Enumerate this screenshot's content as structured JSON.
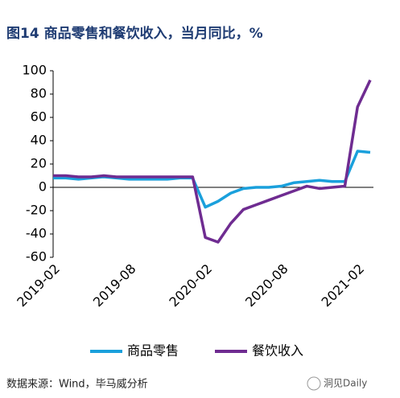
{
  "chart_data": {
    "type": "line",
    "title": "图14  商品零售和餐饮收入，当月同比，%",
    "source": "数据来源：Wind，毕马威分析",
    "watermark": "洞见Daily",
    "categories": [
      "2019-02",
      null,
      null,
      null,
      null,
      null,
      "2019-08",
      null,
      null,
      null,
      null,
      null,
      "2020-02",
      null,
      null,
      null,
      null,
      null,
      "2020-08",
      null,
      null,
      null,
      null,
      null,
      "2021-02",
      null
    ],
    "series": [
      {
        "name": "商品零售",
        "color": "#1aa0dc",
        "values": [
          8,
          8,
          7,
          8,
          9,
          8,
          7,
          7,
          7,
          7,
          8,
          8,
          -17,
          -12,
          -5,
          -1,
          0,
          0,
          1,
          4,
          5,
          6,
          5,
          5,
          31,
          30
        ]
      },
      {
        "name": "餐饮收入",
        "color": "#6f2c91",
        "values": [
          10,
          10,
          9,
          9,
          10,
          9,
          9,
          9,
          9,
          9,
          9,
          9,
          -43,
          -47,
          -31,
          -19,
          -15,
          -11,
          -7,
          -3,
          1,
          -1,
          0,
          1,
          69,
          92
        ]
      }
    ],
    "ylim": [
      -60,
      100
    ],
    "yticks": [
      -60,
      -40,
      -20,
      0,
      20,
      40,
      60,
      80,
      100
    ],
    "grid": false
  }
}
